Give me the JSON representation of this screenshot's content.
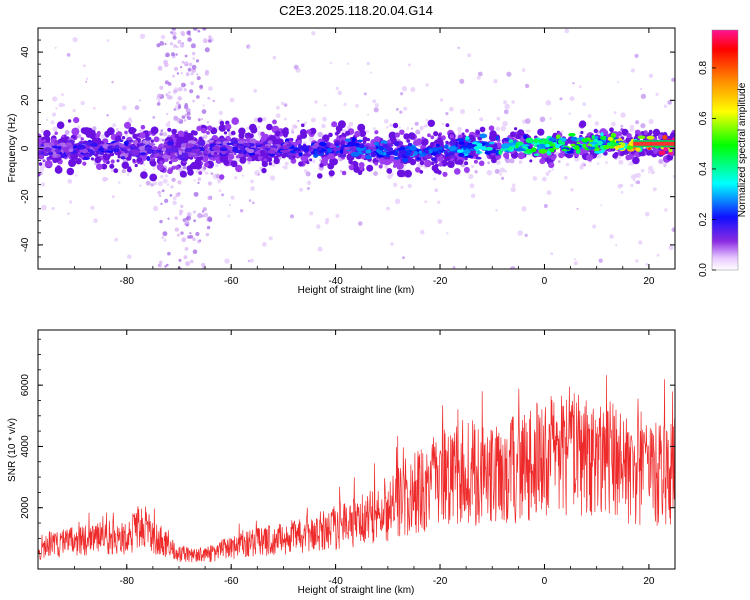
{
  "title": "C2E3.2025.118.20.04.G14",
  "chart_data": [
    {
      "type": "heatmap",
      "xlabel": "Height of straight line (km)",
      "ylabel": "Frequency (Hz)",
      "xlim": [
        -97,
        25
      ],
      "ylim": [
        -50,
        50
      ],
      "xticks": [
        -80,
        -60,
        -40,
        -20,
        0,
        20
      ],
      "yticks": [
        -40,
        -20,
        0,
        20,
        40
      ],
      "colorbar": {
        "label": "Normalized spectral amplitude",
        "range": [
          0,
          0.95
        ],
        "ticks": [
          0.0,
          0.2,
          0.4,
          0.6,
          0.8
        ],
        "colormap": [
          "#ffffff",
          "#8a2be2",
          "#0000ff",
          "#00ffff",
          "#00ff00",
          "#ffff00",
          "#ff8000",
          "#ff0000",
          "#ff1493"
        ]
      },
      "ridge": {
        "x": [
          -97,
          -90,
          -80,
          -70,
          -60,
          -50,
          -40,
          -30,
          -20,
          -10,
          0,
          10,
          20,
          25
        ],
        "frequency": [
          -1,
          0,
          0,
          -1,
          0,
          0,
          0,
          -1,
          -1,
          1,
          1,
          2,
          2,
          2
        ],
        "amplitude": [
          0.12,
          0.15,
          0.14,
          0.12,
          0.14,
          0.16,
          0.2,
          0.22,
          0.22,
          0.3,
          0.38,
          0.4,
          0.6,
          0.85
        ]
      }
    },
    {
      "type": "line",
      "xlabel": "Height of straight line (km)",
      "ylabel": "SNR (10 * v/v)",
      "xlim": [
        -97,
        25
      ],
      "ylim": [
        0,
        7800
      ],
      "xticks": [
        -80,
        -60,
        -40,
        -20,
        0,
        20
      ],
      "yticks": [
        2000,
        4000,
        6000
      ],
      "series": [
        {
          "color": "#ee2a2a",
          "x": [
            -97,
            -95,
            -90,
            -85,
            -80,
            -77,
            -75,
            -70,
            -65,
            -60,
            -55,
            -50,
            -45,
            -40,
            -35,
            -30,
            -25,
            -20,
            -17,
            -15,
            -10,
            -5,
            0,
            5,
            10,
            14,
            15,
            20,
            25
          ],
          "values": [
            600,
            800,
            900,
            1000,
            1000,
            1500,
            1100,
            500,
            450,
            700,
            900,
            1000,
            1100,
            1400,
            1600,
            2000,
            2500,
            2900,
            3100,
            3200,
            3000,
            3300,
            3600,
            3900,
            3400,
            3700,
            3200,
            3100,
            3200
          ]
        }
      ]
    }
  ]
}
